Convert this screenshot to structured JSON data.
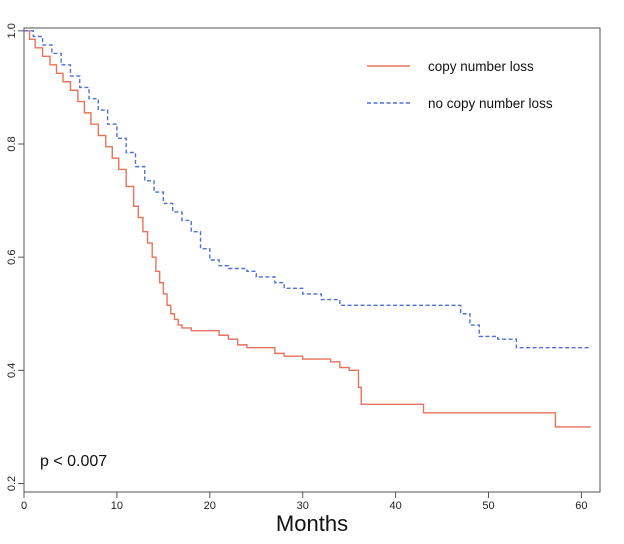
{
  "chart_data": {
    "type": "line",
    "title": "",
    "xlabel": "Months",
    "ylabel": "",
    "xlim": [
      0,
      62
    ],
    "ylim": [
      0.185,
      1.005
    ],
    "x_ticks": [
      0,
      10,
      20,
      30,
      40,
      50,
      60
    ],
    "y_ticks": [
      0.2,
      0.4,
      0.6,
      0.8,
      1.0
    ],
    "y_tick_labels": [
      "0.2",
      "0.4",
      "0.6",
      "0.8",
      "1.0"
    ],
    "grid": false,
    "legend_position": "top-right",
    "annotation": "p < 0.007",
    "series": [
      {
        "name": "copy number loss",
        "color": "#e8735a",
        "line_style": "solid",
        "step": true,
        "x": [
          0,
          0.6,
          1.2,
          2,
          2.8,
          3.5,
          4.2,
          5,
          5.8,
          6.5,
          7.2,
          8,
          8.8,
          9.5,
          10.2,
          11,
          11.8,
          12.3,
          12.8,
          13.3,
          13.8,
          14.2,
          14.6,
          15,
          15.4,
          15.8,
          16.2,
          16.6,
          17,
          18,
          19,
          20,
          21,
          22,
          23,
          24,
          25,
          27,
          28,
          30,
          32,
          33,
          34,
          35,
          36,
          36.3,
          37,
          40,
          43,
          45,
          50,
          55,
          57.2,
          61
        ],
        "y": [
          1.0,
          0.985,
          0.97,
          0.955,
          0.94,
          0.925,
          0.91,
          0.895,
          0.875,
          0.855,
          0.835,
          0.815,
          0.795,
          0.775,
          0.755,
          0.725,
          0.69,
          0.67,
          0.645,
          0.625,
          0.6,
          0.575,
          0.555,
          0.535,
          0.515,
          0.5,
          0.49,
          0.48,
          0.475,
          0.47,
          0.47,
          0.47,
          0.462,
          0.455,
          0.445,
          0.44,
          0.44,
          0.43,
          0.425,
          0.42,
          0.42,
          0.415,
          0.405,
          0.4,
          0.37,
          0.34,
          0.34,
          0.34,
          0.325,
          0.325,
          0.325,
          0.325,
          0.3,
          0.3
        ]
      },
      {
        "name": "no copy number loss",
        "color": "#4f6fd8",
        "line_style": "dashed",
        "step": true,
        "x": [
          0,
          1,
          2,
          3,
          4,
          5,
          6,
          7,
          8,
          9,
          10,
          11,
          12,
          13,
          14,
          15,
          16,
          17,
          18,
          19,
          20,
          21,
          22,
          24,
          25,
          27,
          28,
          30,
          32,
          34,
          35,
          37,
          39,
          42,
          45,
          47,
          48,
          49,
          51,
          53,
          55,
          58,
          61
        ],
        "y": [
          1.0,
          0.99,
          0.975,
          0.96,
          0.94,
          0.92,
          0.9,
          0.88,
          0.86,
          0.835,
          0.81,
          0.785,
          0.76,
          0.735,
          0.715,
          0.695,
          0.68,
          0.665,
          0.645,
          0.615,
          0.595,
          0.585,
          0.58,
          0.575,
          0.565,
          0.555,
          0.545,
          0.535,
          0.525,
          0.515,
          0.515,
          0.515,
          0.515,
          0.515,
          0.515,
          0.5,
          0.48,
          0.46,
          0.455,
          0.44,
          0.44,
          0.44,
          0.44
        ]
      }
    ]
  }
}
